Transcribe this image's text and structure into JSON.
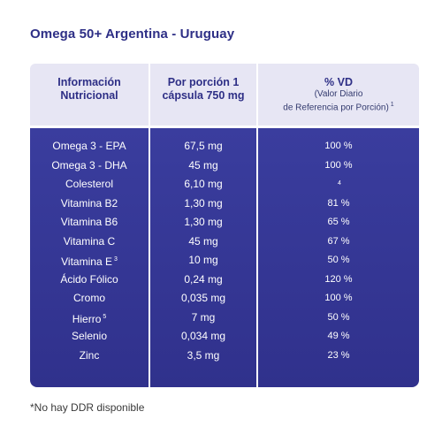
{
  "title": "Omega 50+ Argentina - Uruguay",
  "headers": {
    "col1": "Información Nutricional",
    "col2": "Por porción 1 cápsula 750 mg",
    "col3_main": "% VD",
    "col3_sub1": "(Valor Diario",
    "col3_sub2": "de Referencia por Porción)",
    "col3_sup": "1"
  },
  "rows": [
    {
      "name": "Omega 3 - EPA",
      "sup": "",
      "amount": "67,5 mg",
      "vd": "100 %",
      "vd_sup": ""
    },
    {
      "name": "Omega 3 - DHA",
      "sup": "",
      "amount": "45 mg",
      "vd": "100 %",
      "vd_sup": ""
    },
    {
      "name": "Colesterol",
      "sup": "",
      "amount": "6,10 mg",
      "vd": "",
      "vd_sup": "4"
    },
    {
      "name": "Vitamina B2",
      "sup": "",
      "amount": "1,30 mg",
      "vd": "81 %",
      "vd_sup": ""
    },
    {
      "name": "Vitamina B6",
      "sup": "",
      "amount": "1,30 mg",
      "vd": "65 %",
      "vd_sup": ""
    },
    {
      "name": "Vitamina C",
      "sup": "",
      "amount": "45 mg",
      "vd": "67 %",
      "vd_sup": ""
    },
    {
      "name": "Vitamina E",
      "sup": "3",
      "amount": "10 mg",
      "vd": "50 %",
      "vd_sup": ""
    },
    {
      "name": "Ácido Fólico",
      "sup": "",
      "amount": "0,24 mg",
      "vd": "120 %",
      "vd_sup": ""
    },
    {
      "name": "Cromo",
      "sup": "",
      "amount": "0,035 mg",
      "vd": "100 %",
      "vd_sup": ""
    },
    {
      "name": "Hierro",
      "sup": "5",
      "amount": "7 mg",
      "vd": "50 %",
      "vd_sup": ""
    },
    {
      "name": "Selenio",
      "sup": "",
      "amount": "0,034 mg",
      "vd": "49 %",
      "vd_sup": ""
    },
    {
      "name": "Zinc",
      "sup": "",
      "amount": "3,5 mg",
      "vd": "23 %",
      "vd_sup": ""
    }
  ],
  "footnote": "*No hay DDR disponible",
  "colors": {
    "header_bg": "#e7e6f4",
    "body_bg": "#33348f",
    "title": "#2e2f86"
  }
}
